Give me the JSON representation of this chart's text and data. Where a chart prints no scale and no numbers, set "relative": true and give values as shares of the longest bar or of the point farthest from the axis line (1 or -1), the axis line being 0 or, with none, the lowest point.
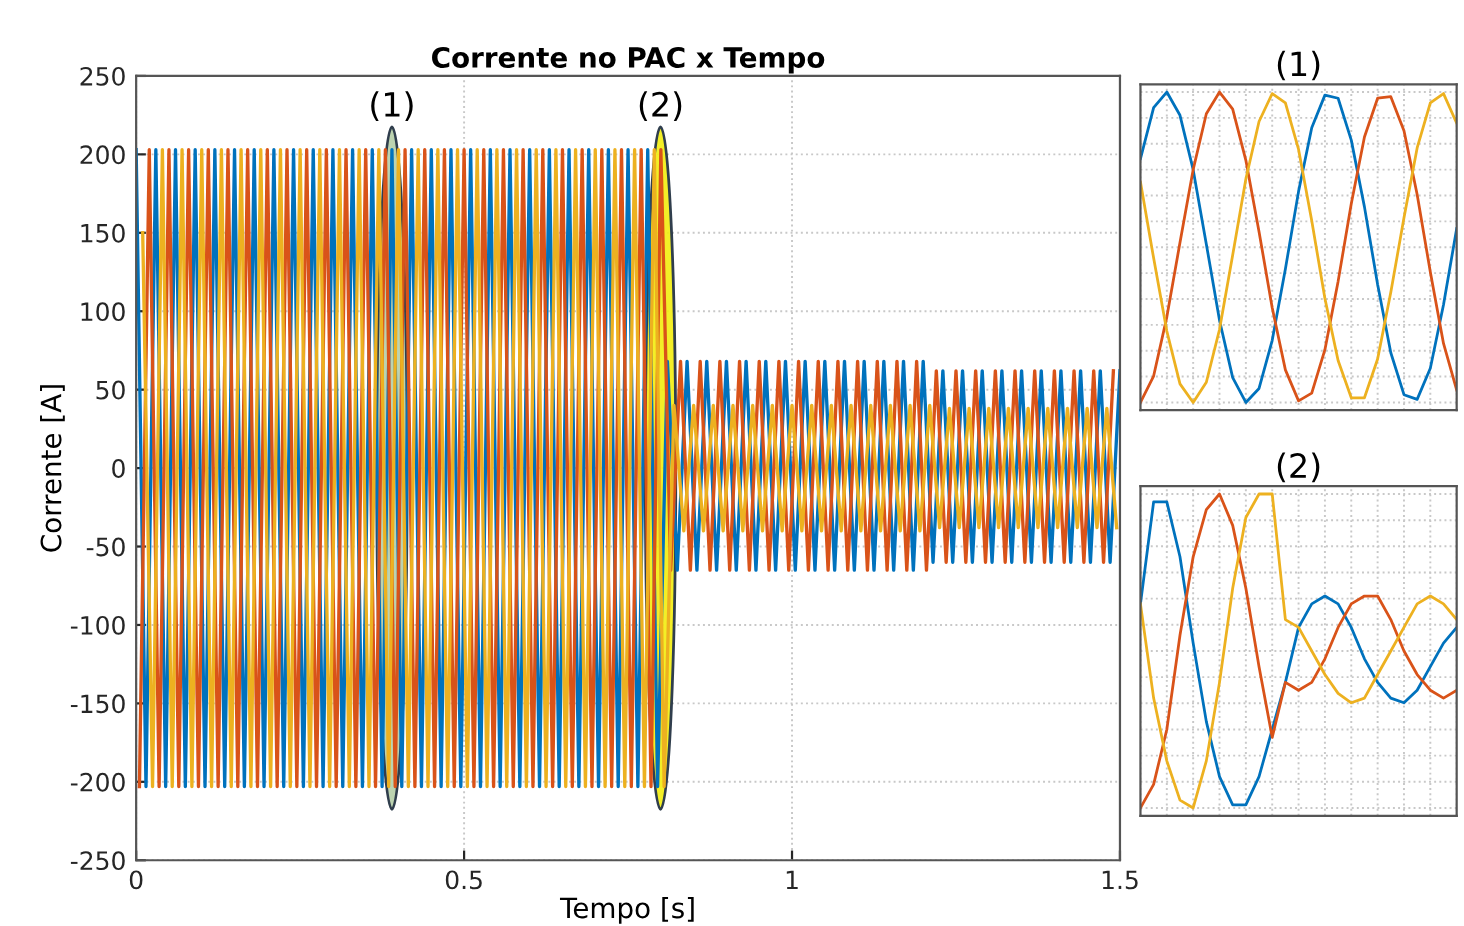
{
  "chart_data": [
    {
      "type": "line",
      "title": "Corrente no PAC x Tempo",
      "xlabel": "Tempo [s]",
      "ylabel": "Corrente [A]",
      "xlim": [
        0,
        1.5
      ],
      "ylim": [
        -250,
        250
      ],
      "xticks": [
        0,
        0.5,
        1,
        1.5
      ],
      "yticks": [
        -250,
        -200,
        -150,
        -100,
        -50,
        0,
        50,
        100,
        150,
        200,
        250
      ],
      "grid": true,
      "annotations": [
        "(1)",
        "(2)"
      ],
      "series": [
        {
          "color": "#0072bd",
          "x": [
            0,
            0.015,
            0.03,
            0.045,
            0.06,
            0.075,
            0.09,
            0.105,
            0.12,
            0.135,
            0.15,
            0.165,
            0.18,
            0.195,
            0.21,
            0.225,
            0.24,
            0.255,
            0.27,
            0.285,
            0.3,
            0.315,
            0.33,
            0.345,
            0.36,
            0.375,
            0.39,
            0.405,
            0.42,
            0.435,
            0.45,
            0.465,
            0.48,
            0.495,
            0.51,
            0.525,
            0.54,
            0.555,
            0.57,
            0.585,
            0.6,
            0.615,
            0.63,
            0.645,
            0.66,
            0.675,
            0.69,
            0.705,
            0.72,
            0.735,
            0.75,
            0.765,
            0.78,
            0.795,
            0.81,
            0.825,
            0.84,
            0.855,
            0.87,
            0.885,
            0.9,
            0.915,
            0.93,
            0.945,
            0.96,
            0.975,
            0.99,
            1.005,
            1.02,
            1.035,
            1.05,
            1.065,
            1.08,
            1.095,
            1.11,
            1.125,
            1.14,
            1.155,
            1.17,
            1.185,
            1.2,
            1.215,
            1.23,
            1.245,
            1.26,
            1.275,
            1.29,
            1.305,
            1.32,
            1.335,
            1.35,
            1.365,
            1.38,
            1.395,
            1.41,
            1.425,
            1.44,
            1.455,
            1.47,
            1.485,
            1.5
          ],
          "values": [
            203,
            -203,
            203,
            -203,
            203,
            -203,
            203,
            -203,
            203,
            -203,
            203,
            -203,
            203,
            -203,
            203,
            -203,
            203,
            -203,
            203,
            -203,
            203,
            -203,
            203,
            -203,
            203,
            -203,
            203,
            -203,
            203,
            -203,
            203,
            -203,
            203,
            -203,
            203,
            -203,
            203,
            -203,
            203,
            -203,
            203,
            -203,
            203,
            -203,
            203,
            -203,
            203,
            -203,
            203,
            -203,
            203,
            -203,
            203,
            -203,
            68,
            -65,
            68,
            -65,
            68,
            -65,
            68,
            -65,
            68,
            -65,
            68,
            -65,
            68,
            -65,
            68,
            -65,
            68,
            -65,
            68,
            -65,
            68,
            -65,
            68,
            -65,
            68,
            -65,
            68,
            -60,
            62,
            -60,
            62,
            -60,
            62,
            -60,
            62,
            -60,
            62,
            -60,
            62,
            -60,
            62,
            -60,
            62,
            -60,
            62,
            -60,
            62
          ]
        },
        {
          "color": "#d95319",
          "x": [
            0.005,
            0.02,
            0.035,
            0.05,
            0.065,
            0.08,
            0.095,
            0.11,
            0.125,
            0.14,
            0.155,
            0.17,
            0.185,
            0.2,
            0.215,
            0.23,
            0.245,
            0.26,
            0.275,
            0.29,
            0.305,
            0.32,
            0.335,
            0.35,
            0.365,
            0.38,
            0.395,
            0.41,
            0.425,
            0.44,
            0.455,
            0.47,
            0.485,
            0.5,
            0.515,
            0.53,
            0.545,
            0.56,
            0.575,
            0.59,
            0.605,
            0.62,
            0.635,
            0.65,
            0.665,
            0.68,
            0.695,
            0.71,
            0.725,
            0.74,
            0.755,
            0.77,
            0.785,
            0.8,
            0.815,
            0.83,
            0.845,
            0.86,
            0.875,
            0.89,
            0.905,
            0.92,
            0.935,
            0.95,
            0.965,
            0.98,
            0.995,
            1.01,
            1.025,
            1.04,
            1.055,
            1.07,
            1.085,
            1.1,
            1.115,
            1.13,
            1.145,
            1.16,
            1.175,
            1.19,
            1.205,
            1.22,
            1.235,
            1.25,
            1.265,
            1.28,
            1.295,
            1.31,
            1.325,
            1.34,
            1.355,
            1.37,
            1.385,
            1.4,
            1.415,
            1.43,
            1.445,
            1.46,
            1.475,
            1.49
          ],
          "values": [
            -203,
            203,
            -203,
            203,
            -203,
            203,
            -203,
            203,
            -203,
            203,
            -203,
            203,
            -203,
            203,
            -203,
            203,
            -203,
            203,
            -203,
            203,
            -203,
            203,
            -203,
            203,
            -203,
            203,
            -203,
            203,
            -203,
            203,
            -203,
            203,
            -203,
            203,
            -203,
            203,
            -203,
            203,
            -203,
            203,
            -203,
            203,
            -203,
            203,
            -203,
            203,
            -203,
            203,
            -203,
            203,
            -203,
            203,
            -203,
            203,
            -65,
            68,
            -65,
            68,
            -65,
            68,
            -65,
            68,
            -65,
            68,
            -65,
            68,
            -65,
            68,
            -65,
            68,
            -65,
            68,
            -65,
            68,
            -65,
            68,
            -65,
            68,
            -65,
            68,
            -65,
            62,
            -60,
            62,
            -60,
            62,
            -60,
            62,
            -60,
            62,
            -60,
            62,
            -60,
            62,
            -60,
            62,
            -60,
            62,
            -60,
            62
          ]
        },
        {
          "color": "#edb120",
          "x": [
            0.01,
            0.025,
            0.04,
            0.055,
            0.07,
            0.085,
            0.1,
            0.115,
            0.13,
            0.145,
            0.16,
            0.175,
            0.19,
            0.205,
            0.22,
            0.235,
            0.25,
            0.265,
            0.28,
            0.295,
            0.31,
            0.325,
            0.34,
            0.355,
            0.37,
            0.385,
            0.4,
            0.415,
            0.43,
            0.445,
            0.46,
            0.475,
            0.49,
            0.505,
            0.52,
            0.535,
            0.55,
            0.565,
            0.58,
            0.595,
            0.61,
            0.625,
            0.64,
            0.655,
            0.67,
            0.685,
            0.7,
            0.715,
            0.73,
            0.745,
            0.76,
            0.775,
            0.79,
            0.805,
            0.82,
            0.835,
            0.85,
            0.865,
            0.88,
            0.895,
            0.91,
            0.925,
            0.94,
            0.955,
            0.97,
            0.985,
            1.0,
            1.015,
            1.03,
            1.045,
            1.06,
            1.075,
            1.09,
            1.105,
            1.12,
            1.135,
            1.15,
            1.165,
            1.18,
            1.195,
            1.21,
            1.225,
            1.24,
            1.255,
            1.27,
            1.285,
            1.3,
            1.315,
            1.33,
            1.345,
            1.36,
            1.375,
            1.39,
            1.405,
            1.42,
            1.435,
            1.45,
            1.465,
            1.48,
            1.495
          ],
          "values": [
            150,
            -203,
            203,
            -203,
            203,
            -203,
            203,
            -203,
            203,
            -203,
            203,
            -203,
            203,
            -203,
            203,
            -203,
            203,
            -203,
            203,
            -203,
            203,
            -203,
            203,
            -203,
            203,
            -203,
            203,
            -203,
            203,
            -203,
            203,
            -203,
            203,
            -203,
            203,
            -203,
            203,
            -203,
            203,
            -203,
            203,
            -203,
            203,
            -203,
            203,
            -203,
            203,
            -203,
            203,
            -203,
            203,
            -203,
            203,
            -203,
            40,
            -40,
            40,
            -40,
            40,
            -40,
            40,
            -40,
            40,
            -40,
            40,
            -40,
            40,
            -40,
            40,
            -40,
            40,
            -40,
            40,
            -40,
            40,
            -40,
            40,
            -40,
            40,
            -40,
            40,
            -38,
            38,
            -38,
            38,
            -38,
            38,
            -38,
            38,
            -38,
            38,
            -38,
            38,
            -38,
            38,
            -38,
            38,
            -38,
            38,
            -38
          ]
        }
      ]
    },
    {
      "type": "line",
      "title": "(1)",
      "relative": true,
      "grid": true,
      "tick_labels": false,
      "categories": [
        null,
        null,
        null,
        null,
        null,
        null,
        null,
        null,
        null,
        null,
        null,
        null,
        null,
        null,
        null,
        null,
        null,
        null,
        null,
        null,
        null,
        null,
        null,
        null,
        null
      ],
      "series": [
        {
          "color": "#0072bd",
          "values": [
            0.57,
            0.9,
            1.0,
            0.85,
            0.5,
            0.02,
            -0.47,
            -0.84,
            -1.0,
            -0.91,
            -0.6,
            -0.14,
            0.36,
            0.77,
            0.98,
            0.96,
            0.69,
            0.26,
            -0.24,
            -0.68,
            -0.95,
            -0.98,
            -0.78,
            -0.37,
            0.12
          ]
        },
        {
          "color": "#d95319",
          "values": [
            -1.0,
            -0.83,
            -0.45,
            0.03,
            0.5,
            0.86,
            1.0,
            0.89,
            0.56,
            0.1,
            -0.39,
            -0.79,
            -0.99,
            -0.94,
            -0.66,
            -0.22,
            0.28,
            0.71,
            0.96,
            0.97,
            0.75,
            0.34,
            -0.16,
            -0.62,
            -0.92
          ]
        },
        {
          "color": "#edb120",
          "values": [
            0.42,
            -0.07,
            -0.54,
            -0.88,
            -1.0,
            -0.87,
            -0.53,
            -0.05,
            0.44,
            0.81,
            0.99,
            0.93,
            0.63,
            0.17,
            -0.33,
            -0.73,
            -0.97,
            -0.97,
            -0.72,
            -0.29,
            0.19,
            0.64,
            0.93,
            0.99,
            0.8
          ]
        }
      ]
    },
    {
      "type": "line",
      "title": "(2)",
      "relative": true,
      "grid": true,
      "tick_labels": false,
      "categories": [
        null,
        null,
        null,
        null,
        null,
        null,
        null,
        null,
        null,
        null,
        null,
        null,
        null,
        null,
        null,
        null,
        null,
        null,
        null,
        null,
        null,
        null,
        null,
        null,
        null
      ],
      "series": [
        {
          "color": "#0072bd",
          "values": [
            0.3,
            0.95,
            0.95,
            0.6,
            0.05,
            -0.45,
            -0.8,
            -0.98,
            -0.98,
            -0.8,
            -0.5,
            -0.2,
            0.15,
            0.3,
            0.35,
            0.3,
            0.15,
            -0.05,
            -0.2,
            -0.3,
            -0.33,
            -0.25,
            -0.1,
            0.05,
            0.15
          ]
        },
        {
          "color": "#d95319",
          "values": [
            -1.0,
            -0.85,
            -0.5,
            0.1,
            0.6,
            0.9,
            1.0,
            0.8,
            0.4,
            -0.1,
            -0.55,
            -0.2,
            -0.25,
            -0.2,
            -0.05,
            0.15,
            0.3,
            0.35,
            0.35,
            0.2,
            0.0,
            -0.15,
            -0.25,
            -0.3,
            -0.25
          ]
        },
        {
          "color": "#edb120",
          "values": [
            0.3,
            -0.3,
            -0.7,
            -0.95,
            -1.0,
            -0.7,
            -0.2,
            0.4,
            0.85,
            1.0,
            1.0,
            0.2,
            0.15,
            0.0,
            -0.15,
            -0.27,
            -0.33,
            -0.3,
            -0.15,
            0.0,
            0.15,
            0.3,
            0.35,
            0.3,
            0.2
          ]
        }
      ]
    }
  ]
}
